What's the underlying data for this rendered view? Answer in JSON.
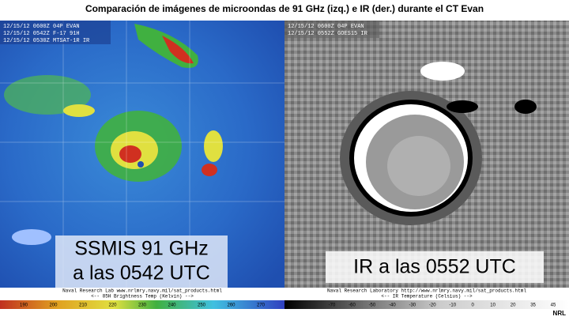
{
  "title": "Comparación de imágenes de microondas de 91 GHz (izq.) e IR (der.) durante el CT Evan",
  "left_panel": {
    "header": [
      "12/15/12 0600Z 04P EVAN",
      "12/15/12 0542Z F-17 91H",
      "12/15/12 0530Z MTSAT-1R IR"
    ],
    "label": [
      "SSMIS 91 GHz",
      "a las 0542 UTC"
    ],
    "footer": [
      "Naval Research Lab  www.nrlmry.navy.mil/sat_products.html",
      "<--   85H Brightness Temp (Kelvin)   -->"
    ],
    "colorbar_ticks": [
      190,
      200,
      210,
      220,
      230,
      240,
      250,
      260,
      270
    ]
  },
  "right_panel": {
    "header": [
      "12/15/12 0600Z 04P EVAN",
      "12/15/12 0552Z GOES15 IR"
    ],
    "label": "IR a las 0552 UTC",
    "footer": [
      "Naval Research Laboratory  http://www.nrlmry.navy.mil/sat_products.html",
      "<--   IR Temperature (Celsius)   -->"
    ],
    "colorbar_ticks": [
      -70,
      -60,
      -50,
      -40,
      -30,
      -20,
      -10,
      0,
      10,
      20,
      35,
      45
    ]
  },
  "credit": "NRL"
}
